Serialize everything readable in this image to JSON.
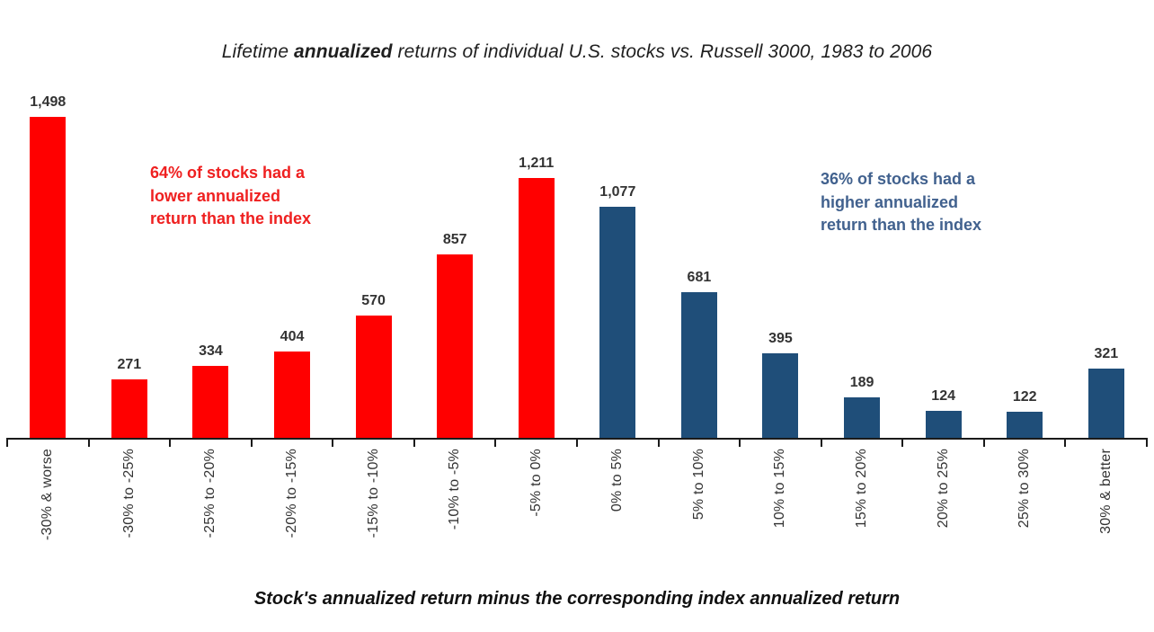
{
  "title": {
    "prefix": "Lifetime ",
    "emphasis": "annualized",
    "suffix": " returns of individual U.S. stocks vs. Russell 3000, 1983 to 2006"
  },
  "annotations": {
    "lower": {
      "text": "64% of stocks had a\nlower annualized\nreturn than the index",
      "color": "#EF2020"
    },
    "higher": {
      "text": "36% of stocks had a\nhigher annualized\nreturn than the index",
      "color": "#41618E"
    }
  },
  "chart_data": {
    "type": "bar",
    "title": "Lifetime annualized returns of individual U.S. stocks vs. Russell 3000, 1983 to 2006",
    "xlabel": "Stock's annualized return minus the corresponding index annualized return",
    "ylabel": "",
    "categories": [
      "-30% & worse",
      "-30% to -25%",
      "-25% to -20%",
      "-20% to -15%",
      "-15% to -10%",
      "-10% to -5%",
      "-5% to 0%",
      "0% to 5%",
      "5% to 10%",
      "10% to 15%",
      "15% to 20%",
      "20% to 25%",
      "25% to 30%",
      "30% & better"
    ],
    "values": [
      1498,
      271,
      334,
      404,
      570,
      857,
      1211,
      1077,
      681,
      395,
      189,
      124,
      122,
      321
    ],
    "value_labels": [
      "1,498",
      "271",
      "334",
      "404",
      "570",
      "857",
      "1,211",
      "1,077",
      "681",
      "395",
      "189",
      "124",
      "122",
      "321"
    ],
    "bar_groups": [
      "below",
      "below",
      "below",
      "below",
      "below",
      "below",
      "below",
      "above",
      "above",
      "above",
      "above",
      "above",
      "above",
      "above"
    ],
    "group_colors": {
      "below": "#FF0000",
      "above": "#1F4E79"
    },
    "ylim": [
      0,
      1500
    ],
    "grid": false,
    "legend": false,
    "value_labels_shown": true,
    "x_tick_label_rotation": 90
  }
}
